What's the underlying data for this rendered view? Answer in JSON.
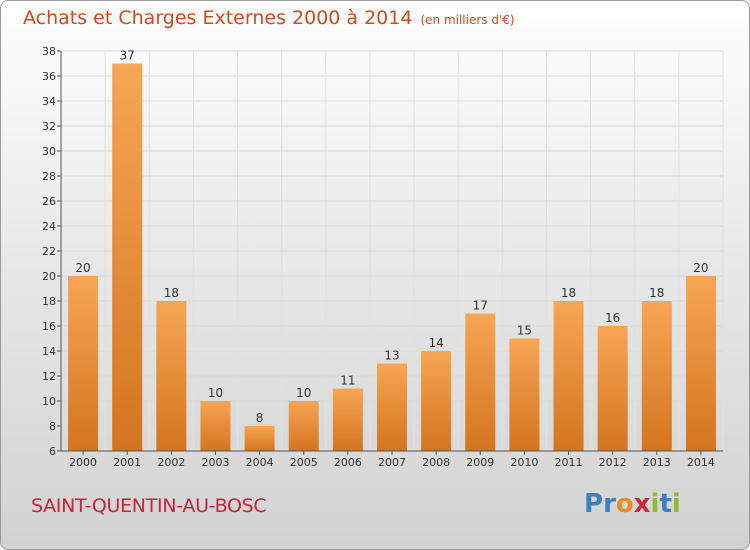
{
  "header": {
    "title": "Achats et Charges Externes 2000 à 2014",
    "subtitle": "(en milliers d'€)"
  },
  "footer": {
    "city": "SAINT-QUENTIN-AU-BOSC",
    "logo_text": "Proxiti",
    "logo_letters": [
      {
        "ch": "P",
        "color": "#3a7fc4"
      },
      {
        "ch": "r",
        "color": "#3a7fc4"
      },
      {
        "ch": "o",
        "color": "#f08a1c"
      },
      {
        "ch": "x",
        "color": "#d2283a"
      },
      {
        "ch": "i",
        "color": "#8bbd2a"
      },
      {
        "ch": "t",
        "color": "#3a7fc4"
      },
      {
        "ch": "i",
        "color": "#8bbd2a"
      }
    ]
  },
  "chart_data": {
    "type": "bar",
    "categories": [
      "2000",
      "2001",
      "2002",
      "2003",
      "2004",
      "2005",
      "2006",
      "2007",
      "2008",
      "2009",
      "2010",
      "2011",
      "2012",
      "2013",
      "2014"
    ],
    "values": [
      20,
      37,
      18,
      10,
      8,
      10,
      11,
      13,
      14,
      17,
      15,
      18,
      16,
      18,
      20
    ],
    "ylim": [
      6,
      38
    ],
    "yticks": [
      6,
      8,
      10,
      12,
      14,
      16,
      18,
      20,
      22,
      24,
      26,
      28,
      30,
      32,
      34,
      36,
      38
    ],
    "grid": true,
    "bar_color_top": "#f7a654",
    "bar_color_bottom": "#d4741f"
  }
}
